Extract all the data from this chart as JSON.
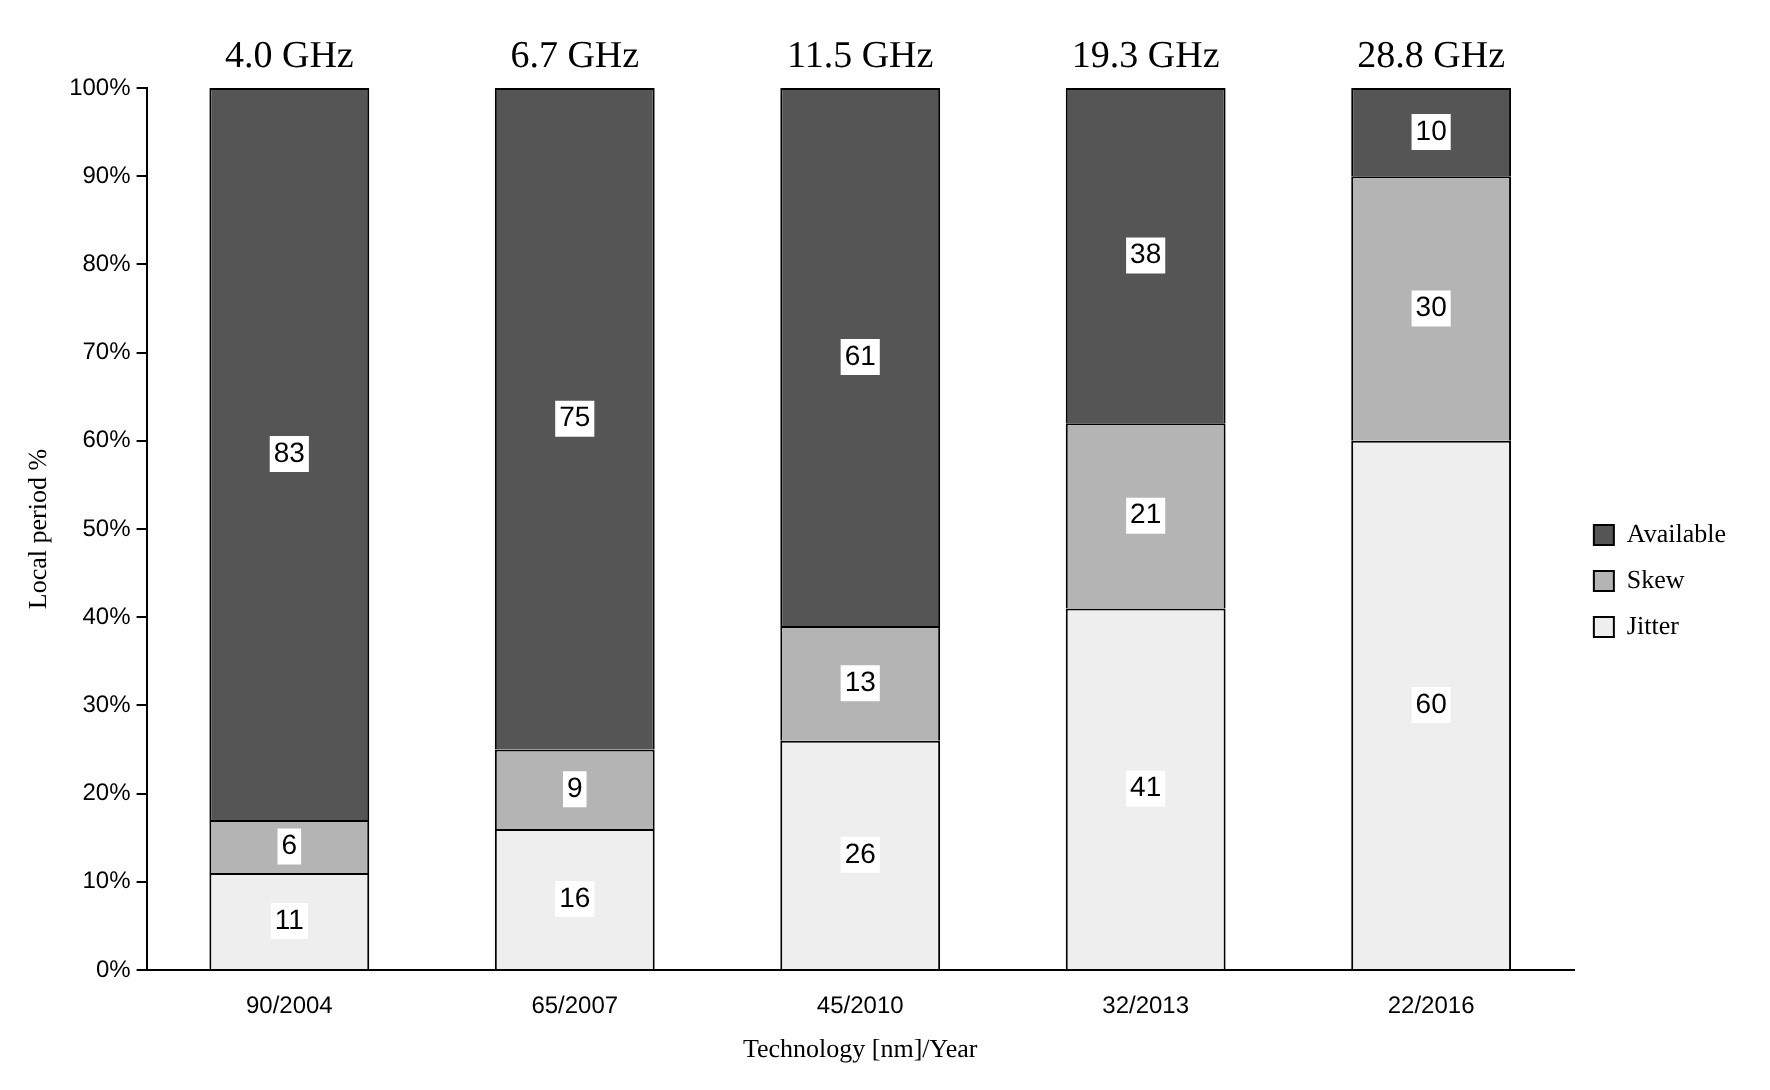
{
  "chart_data": {
    "type": "bar",
    "stacked": true,
    "xlabel": "Technology [nm]/Year",
    "ylabel": "Local period %",
    "categories": [
      "90/2004",
      "65/2007",
      "45/2010",
      "32/2013",
      "22/2016"
    ],
    "series": [
      {
        "name": "Jitter",
        "color": "#eeeeee",
        "values": [
          11,
          16,
          26,
          41,
          60
        ]
      },
      {
        "name": "Skew",
        "color": "#b4b4b4",
        "values": [
          6,
          9,
          13,
          21,
          30
        ]
      },
      {
        "name": "Available",
        "color": "#555555",
        "values": [
          83,
          75,
          61,
          38,
          10
        ]
      }
    ],
    "ylim": [
      0,
      100
    ],
    "yticks": [
      {
        "value": 0,
        "label": "0%"
      },
      {
        "value": 10,
        "label": "10%"
      },
      {
        "value": 20,
        "label": "20%"
      },
      {
        "value": 30,
        "label": "30%"
      },
      {
        "value": 40,
        "label": "40%"
      },
      {
        "value": 50,
        "label": "50%"
      },
      {
        "value": 60,
        "label": "60%"
      },
      {
        "value": 70,
        "label": "70%"
      },
      {
        "value": 80,
        "label": "80%"
      },
      {
        "value": 90,
        "label": "90%"
      },
      {
        "value": 100,
        "label": "100%"
      }
    ],
    "grid": false,
    "legend": "right",
    "data_labels": true,
    "annotations": [
      "4.0 GHz",
      "6.7 GHz",
      "11.5 GHz",
      "19.3 GHz",
      "28.8 GHz"
    ]
  }
}
